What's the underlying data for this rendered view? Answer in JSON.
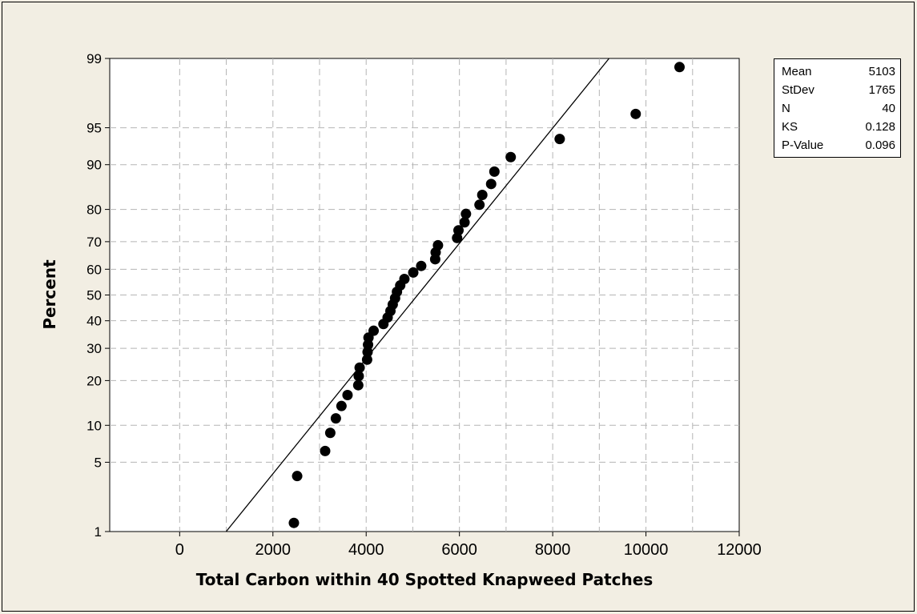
{
  "chart_data": {
    "type": "scatter",
    "subtype": "normal probability plot",
    "title": "",
    "xlabel": "Total Carbon within 40 Spotted Knapweed Patches",
    "ylabel": "Percent",
    "xlim": [
      -1500,
      12000
    ],
    "x_ticks": [
      0,
      2000,
      4000,
      6000,
      8000,
      10000,
      12000
    ],
    "ylim_percent": [
      1,
      99
    ],
    "y_scale": "normal probability",
    "y_ticks": [
      1,
      5,
      10,
      20,
      30,
      40,
      50,
      60,
      70,
      80,
      90,
      95,
      99
    ],
    "grid": true,
    "grid_style": "dashed",
    "fit_line": {
      "mean": 5103,
      "stdev": 1765
    },
    "series": [
      {
        "x": [
          2450,
          2520,
          3120,
          3230,
          3350,
          3470,
          3600,
          3830,
          3840,
          3860,
          4020,
          4030,
          4040,
          4050,
          4160,
          4370,
          4460,
          4520,
          4570,
          4620,
          4660,
          4730,
          4820,
          5010,
          5180,
          5480,
          5490,
          5540,
          5950,
          5980,
          6110,
          6140,
          6430,
          6490,
          6680,
          6750,
          7100,
          8150,
          9780,
          10720
        ],
        "y": [
          1.25,
          3.75,
          6.25,
          8.75,
          11.25,
          13.75,
          16.25,
          18.75,
          21.25,
          23.75,
          26.25,
          28.75,
          31.25,
          33.75,
          36.25,
          38.75,
          41.25,
          43.75,
          46.25,
          48.75,
          51.25,
          53.75,
          56.25,
          58.75,
          61.25,
          63.75,
          66.25,
          68.75,
          71.25,
          73.75,
          76.25,
          78.75,
          81.25,
          83.75,
          86.25,
          88.75,
          91.25,
          93.75,
          96.25,
          98.75
        ]
      }
    ],
    "stats": [
      {
        "label": "Mean",
        "value": "5103"
      },
      {
        "label": "StDev",
        "value": "1765"
      },
      {
        "label": "N",
        "value": "40"
      },
      {
        "label": "KS",
        "value": "0.128"
      },
      {
        "label": "P-Value",
        "value": "0.096"
      }
    ]
  }
}
